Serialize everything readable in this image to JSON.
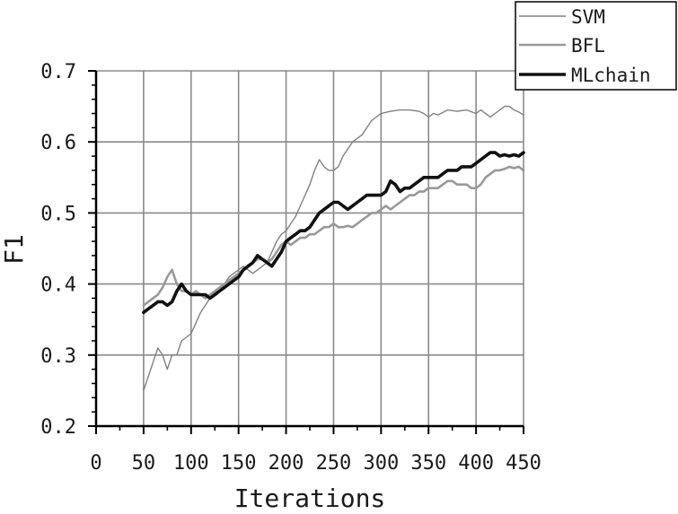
{
  "chart_data": {
    "type": "line",
    "title": "",
    "xlabel": "Iterations",
    "ylabel": "F1",
    "xlim": [
      0,
      450
    ],
    "ylim": [
      0.2,
      0.7
    ],
    "x_ticks": [
      "0",
      "50",
      "100",
      "150",
      "200",
      "250",
      "300",
      "350",
      "400",
      "450"
    ],
    "y_ticks": [
      "0.2",
      "0.3",
      "0.4",
      "0.5",
      "0.6",
      "0.7"
    ],
    "grid": true,
    "legend_position": "top-right",
    "series": [
      {
        "name": "SVM",
        "color": "#808080",
        "points": [
          [
            50,
            0.25
          ],
          [
            55,
            0.27
          ],
          [
            60,
            0.29
          ],
          [
            65,
            0.31
          ],
          [
            70,
            0.3
          ],
          [
            75,
            0.28
          ],
          [
            80,
            0.3
          ],
          [
            85,
            0.3
          ],
          [
            90,
            0.32
          ],
          [
            95,
            0.325
          ],
          [
            100,
            0.33
          ],
          [
            105,
            0.345
          ],
          [
            110,
            0.36
          ],
          [
            115,
            0.37
          ],
          [
            120,
            0.38
          ],
          [
            125,
            0.385
          ],
          [
            130,
            0.39
          ],
          [
            135,
            0.4
          ],
          [
            140,
            0.41
          ],
          [
            145,
            0.415
          ],
          [
            150,
            0.42
          ],
          [
            155,
            0.425
          ],
          [
            160,
            0.42
          ],
          [
            165,
            0.415
          ],
          [
            170,
            0.42
          ],
          [
            175,
            0.425
          ],
          [
            180,
            0.43
          ],
          [
            185,
            0.445
          ],
          [
            190,
            0.46
          ],
          [
            195,
            0.47
          ],
          [
            200,
            0.475
          ],
          [
            205,
            0.485
          ],
          [
            210,
            0.495
          ],
          [
            215,
            0.51
          ],
          [
            220,
            0.525
          ],
          [
            225,
            0.54
          ],
          [
            230,
            0.56
          ],
          [
            235,
            0.575
          ],
          [
            240,
            0.565
          ],
          [
            245,
            0.56
          ],
          [
            250,
            0.56
          ],
          [
            255,
            0.565
          ],
          [
            260,
            0.58
          ],
          [
            265,
            0.59
          ],
          [
            270,
            0.6
          ],
          [
            275,
            0.605
          ],
          [
            280,
            0.61
          ],
          [
            285,
            0.62
          ],
          [
            290,
            0.63
          ],
          [
            295,
            0.635
          ],
          [
            300,
            0.64
          ],
          [
            310,
            0.643
          ],
          [
            320,
            0.645
          ],
          [
            330,
            0.645
          ],
          [
            340,
            0.643
          ],
          [
            345,
            0.64
          ],
          [
            350,
            0.635
          ],
          [
            355,
            0.64
          ],
          [
            360,
            0.638
          ],
          [
            370,
            0.645
          ],
          [
            380,
            0.643
          ],
          [
            390,
            0.645
          ],
          [
            400,
            0.64
          ],
          [
            405,
            0.645
          ],
          [
            410,
            0.64
          ],
          [
            415,
            0.635
          ],
          [
            420,
            0.64
          ],
          [
            425,
            0.645
          ],
          [
            430,
            0.65
          ],
          [
            435,
            0.65
          ],
          [
            440,
            0.645
          ],
          [
            445,
            0.642
          ],
          [
            450,
            0.638
          ]
        ]
      },
      {
        "name": "BFL",
        "color": "#999999",
        "points": [
          [
            50,
            0.37
          ],
          [
            55,
            0.375
          ],
          [
            60,
            0.38
          ],
          [
            65,
            0.385
          ],
          [
            70,
            0.395
          ],
          [
            75,
            0.41
          ],
          [
            80,
            0.42
          ],
          [
            85,
            0.4
          ],
          [
            90,
            0.39
          ],
          [
            95,
            0.39
          ],
          [
            100,
            0.385
          ],
          [
            105,
            0.39
          ],
          [
            110,
            0.385
          ],
          [
            115,
            0.38
          ],
          [
            120,
            0.385
          ],
          [
            125,
            0.39
          ],
          [
            130,
            0.395
          ],
          [
            135,
            0.4
          ],
          [
            140,
            0.405
          ],
          [
            145,
            0.41
          ],
          [
            150,
            0.415
          ],
          [
            155,
            0.42
          ],
          [
            160,
            0.425
          ],
          [
            165,
            0.43
          ],
          [
            170,
            0.435
          ],
          [
            175,
            0.435
          ],
          [
            180,
            0.43
          ],
          [
            185,
            0.435
          ],
          [
            190,
            0.445
          ],
          [
            195,
            0.455
          ],
          [
            200,
            0.46
          ],
          [
            205,
            0.455
          ],
          [
            210,
            0.46
          ],
          [
            215,
            0.465
          ],
          [
            220,
            0.465
          ],
          [
            225,
            0.47
          ],
          [
            230,
            0.47
          ],
          [
            235,
            0.475
          ],
          [
            240,
            0.48
          ],
          [
            245,
            0.48
          ],
          [
            250,
            0.485
          ],
          [
            255,
            0.48
          ],
          [
            260,
            0.48
          ],
          [
            265,
            0.482
          ],
          [
            270,
            0.48
          ],
          [
            275,
            0.485
          ],
          [
            280,
            0.49
          ],
          [
            285,
            0.495
          ],
          [
            290,
            0.5
          ],
          [
            295,
            0.5
          ],
          [
            300,
            0.505
          ],
          [
            305,
            0.51
          ],
          [
            310,
            0.505
          ],
          [
            315,
            0.51
          ],
          [
            320,
            0.515
          ],
          [
            325,
            0.52
          ],
          [
            330,
            0.525
          ],
          [
            335,
            0.525
          ],
          [
            340,
            0.53
          ],
          [
            345,
            0.53
          ],
          [
            350,
            0.535
          ],
          [
            355,
            0.535
          ],
          [
            360,
            0.535
          ],
          [
            365,
            0.54
          ],
          [
            370,
            0.545
          ],
          [
            375,
            0.545
          ],
          [
            380,
            0.54
          ],
          [
            385,
            0.54
          ],
          [
            390,
            0.54
          ],
          [
            395,
            0.535
          ],
          [
            400,
            0.535
          ],
          [
            405,
            0.54
          ],
          [
            410,
            0.55
          ],
          [
            415,
            0.555
          ],
          [
            420,
            0.56
          ],
          [
            425,
            0.56
          ],
          [
            430,
            0.562
          ],
          [
            435,
            0.565
          ],
          [
            440,
            0.563
          ],
          [
            445,
            0.565
          ],
          [
            450,
            0.56
          ]
        ]
      },
      {
        "name": "MLchain",
        "color": "#111111",
        "points": [
          [
            50,
            0.36
          ],
          [
            55,
            0.365
          ],
          [
            60,
            0.37
          ],
          [
            65,
            0.375
          ],
          [
            70,
            0.375
          ],
          [
            75,
            0.37
          ],
          [
            80,
            0.375
          ],
          [
            85,
            0.39
          ],
          [
            90,
            0.4
          ],
          [
            95,
            0.39
          ],
          [
            100,
            0.385
          ],
          [
            105,
            0.385
          ],
          [
            110,
            0.385
          ],
          [
            115,
            0.385
          ],
          [
            120,
            0.38
          ],
          [
            125,
            0.385
          ],
          [
            130,
            0.39
          ],
          [
            135,
            0.395
          ],
          [
            140,
            0.4
          ],
          [
            145,
            0.405
          ],
          [
            150,
            0.41
          ],
          [
            155,
            0.42
          ],
          [
            160,
            0.425
          ],
          [
            165,
            0.43
          ],
          [
            170,
            0.44
          ],
          [
            175,
            0.435
          ],
          [
            180,
            0.43
          ],
          [
            185,
            0.425
          ],
          [
            190,
            0.435
          ],
          [
            195,
            0.445
          ],
          [
            200,
            0.46
          ],
          [
            205,
            0.465
          ],
          [
            210,
            0.47
          ],
          [
            215,
            0.475
          ],
          [
            220,
            0.475
          ],
          [
            225,
            0.48
          ],
          [
            230,
            0.49
          ],
          [
            235,
            0.5
          ],
          [
            240,
            0.505
          ],
          [
            245,
            0.51
          ],
          [
            250,
            0.515
          ],
          [
            255,
            0.515
          ],
          [
            260,
            0.51
          ],
          [
            265,
            0.505
          ],
          [
            270,
            0.51
          ],
          [
            275,
            0.515
          ],
          [
            280,
            0.52
          ],
          [
            285,
            0.525
          ],
          [
            290,
            0.525
          ],
          [
            295,
            0.525
          ],
          [
            300,
            0.525
          ],
          [
            305,
            0.53
          ],
          [
            310,
            0.545
          ],
          [
            315,
            0.54
          ],
          [
            320,
            0.53
          ],
          [
            325,
            0.535
          ],
          [
            330,
            0.535
          ],
          [
            335,
            0.54
          ],
          [
            340,
            0.545
          ],
          [
            345,
            0.55
          ],
          [
            350,
            0.55
          ],
          [
            355,
            0.55
          ],
          [
            360,
            0.55
          ],
          [
            365,
            0.555
          ],
          [
            370,
            0.56
          ],
          [
            375,
            0.56
          ],
          [
            380,
            0.56
          ],
          [
            385,
            0.565
          ],
          [
            390,
            0.565
          ],
          [
            395,
            0.565
          ],
          [
            400,
            0.57
          ],
          [
            405,
            0.575
          ],
          [
            410,
            0.58
          ],
          [
            415,
            0.585
          ],
          [
            420,
            0.585
          ],
          [
            425,
            0.58
          ],
          [
            430,
            0.582
          ],
          [
            435,
            0.58
          ],
          [
            440,
            0.582
          ],
          [
            445,
            0.58
          ],
          [
            450,
            0.585
          ]
        ]
      }
    ]
  }
}
